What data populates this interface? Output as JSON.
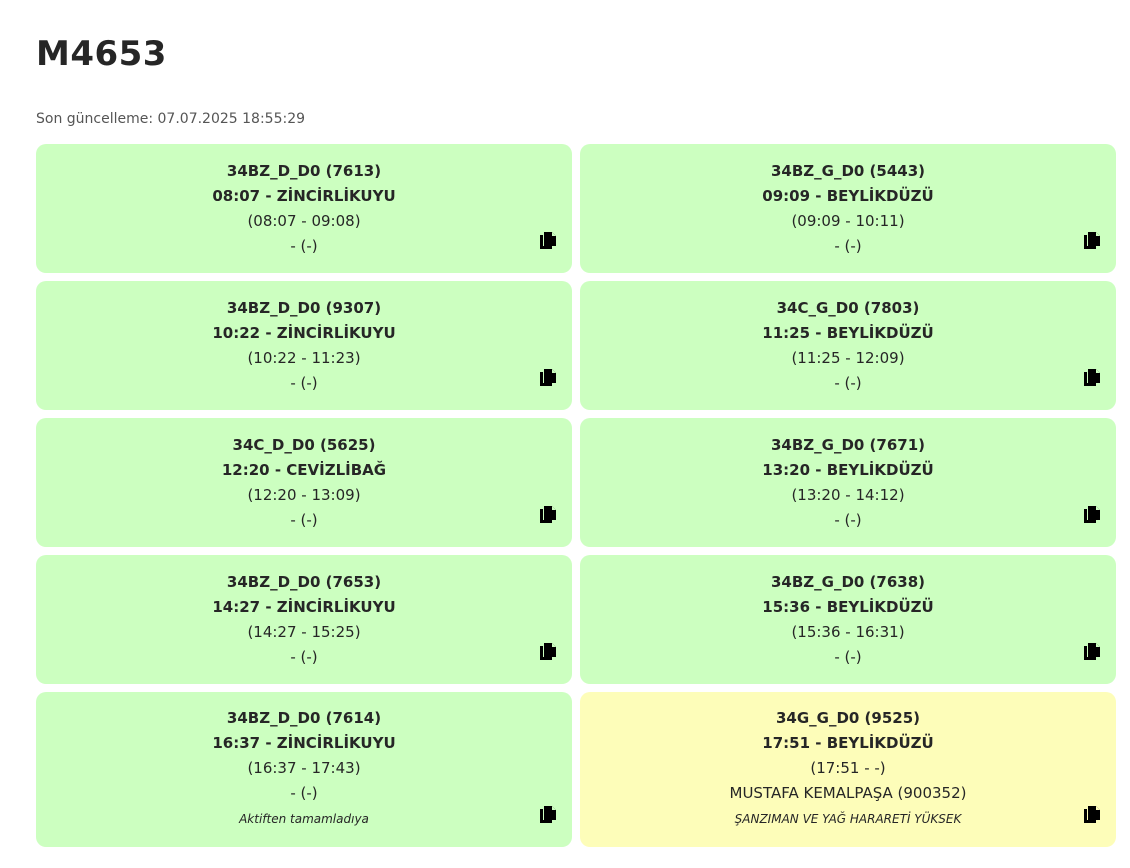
{
  "page": {
    "title": "M4653",
    "updated_text": "Son güncelleme: 07.07.2025 18:55:29"
  },
  "cards": [
    {
      "code": "34BZ_D_D0 (7613)",
      "departure": "08:07 - ZİNCİRLİKUYU",
      "range": "(08:07 - 09:08)",
      "driver": "- (-)",
      "note": "",
      "status": "green",
      "icon": "copy-icon"
    },
    {
      "code": "34BZ_G_D0 (5443)",
      "departure": "09:09 - BEYLİKDÜZÜ",
      "range": "(09:09 - 10:11)",
      "driver": "- (-)",
      "note": "",
      "status": "green",
      "icon": "copy-icon"
    },
    {
      "code": "34BZ_D_D0 (9307)",
      "departure": "10:22 - ZİNCİRLİKUYU",
      "range": "(10:22 - 11:23)",
      "driver": "- (-)",
      "note": "",
      "status": "green",
      "icon": "copy-icon"
    },
    {
      "code": "34C_G_D0 (7803)",
      "departure": "11:25 - BEYLİKDÜZÜ",
      "range": "(11:25 - 12:09)",
      "driver": "- (-)",
      "note": "",
      "status": "green",
      "icon": "copy-icon"
    },
    {
      "code": "34C_D_D0 (5625)",
      "departure": "12:20 - CEVİZLİBAĞ",
      "range": "(12:20 - 13:09)",
      "driver": "- (-)",
      "note": "",
      "status": "green",
      "icon": "copy-icon"
    },
    {
      "code": "34BZ_G_D0 (7671)",
      "departure": "13:20 - BEYLİKDÜZÜ",
      "range": "(13:20 - 14:12)",
      "driver": "- (-)",
      "note": "",
      "status": "green",
      "icon": "copy-icon"
    },
    {
      "code": "34BZ_D_D0 (7653)",
      "departure": "14:27 - ZİNCİRLİKUYU",
      "range": "(14:27 - 15:25)",
      "driver": "- (-)",
      "note": "",
      "status": "green",
      "icon": "copy-icon"
    },
    {
      "code": "34BZ_G_D0 (7638)",
      "departure": "15:36 - BEYLİKDÜZÜ",
      "range": "(15:36 - 16:31)",
      "driver": "- (-)",
      "note": "",
      "status": "green",
      "icon": "copy-icon"
    },
    {
      "code": "34BZ_D_D0 (7614)",
      "departure": "16:37 - ZİNCİRLİKUYU",
      "range": "(16:37 - 17:43)",
      "driver": "- (-)",
      "note": "Aktiften tamamladıya",
      "status": "green",
      "icon": "copy-icon"
    },
    {
      "code": "34G_G_D0 (9525)",
      "departure": "17:51 - BEYLİKDÜZÜ",
      "range": "(17:51 - -)",
      "driver": "MUSTAFA KEMALPAŞA (900352)",
      "note": "ŞANZIMAN VE YAĞ HARARETİ YÜKSEK",
      "status": "yellow",
      "icon": "copy-icon"
    }
  ],
  "colors": {
    "green_card": "#ccffc0",
    "yellow_card": "#fdfdb9",
    "text": "#262626"
  }
}
